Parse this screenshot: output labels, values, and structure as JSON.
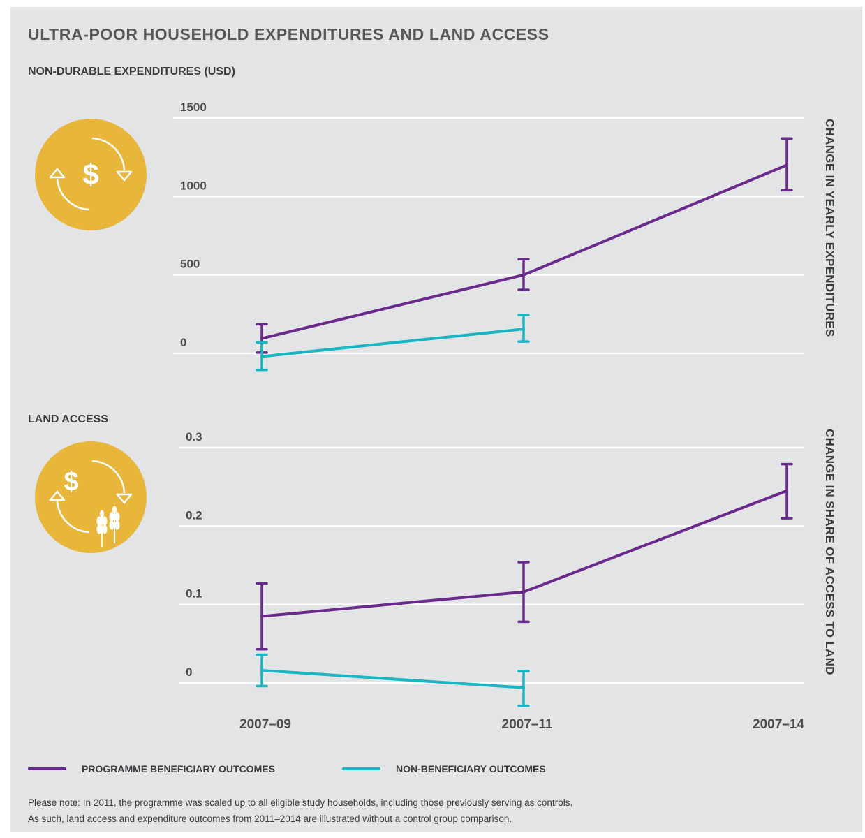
{
  "title": "ULTRA-POOR HOUSEHOLD EXPENDITURES AND LAND ACCESS",
  "colors": {
    "beneficiary": "#6a2a8c",
    "non_beneficiary": "#19b5c3",
    "icon_circle": "#e9b63c",
    "panel": "#e3e4e6"
  },
  "icons": [
    "dollar-cycle-icon",
    "dollar-wheat-cycle-icon"
  ],
  "chart_data": [
    {
      "type": "line",
      "title": "NON-DURABLE EXPENDITURES (USD)",
      "ylabel": "CHANGE IN YEARLY EXPENDITURES",
      "x": [
        "2007–09",
        "2007–11",
        "2007–14"
      ],
      "y_ticks": [
        "1500",
        "1000",
        "500",
        "0"
      ],
      "ylim": [
        0,
        1500
      ],
      "grid": true,
      "series": [
        {
          "name": "PROGRAMME BENEFICIARY OUTCOMES",
          "color": "#6a2a8c",
          "values": [
            95,
            500,
            1200
          ],
          "ci_low": [
            5,
            405,
            1040
          ],
          "ci_high": [
            185,
            600,
            1370
          ]
        },
        {
          "name": "NON-BENEFICIARY OUTCOMES",
          "color": "#19b5c3",
          "values": [
            -20,
            155,
            null
          ],
          "ci_low": [
            -105,
            75,
            null
          ],
          "ci_high": [
            70,
            245,
            null
          ]
        }
      ]
    },
    {
      "type": "line",
      "title": "LAND ACCESS",
      "ylabel": "CHANGE IN SHARE OF ACCESS TO LAND",
      "x": [
        "2007–09",
        "2007–11",
        "2007–14"
      ],
      "y_ticks": [
        "0.3",
        "0.2",
        "0.1",
        "0"
      ],
      "ylim": [
        0,
        0.3
      ],
      "grid": true,
      "series": [
        {
          "name": "PROGRAMME BENEFICIARY OUTCOMES",
          "color": "#6a2a8c",
          "values": [
            0.085,
            0.116,
            0.245
          ],
          "ci_low": [
            0.043,
            0.078,
            0.21
          ],
          "ci_high": [
            0.127,
            0.154,
            0.279
          ]
        },
        {
          "name": "NON-BENEFICIARY OUTCOMES",
          "color": "#19b5c3",
          "values": [
            0.016,
            -0.006,
            null
          ],
          "ci_low": [
            -0.004,
            -0.029,
            null
          ],
          "ci_high": [
            0.036,
            0.015,
            null
          ]
        }
      ]
    }
  ],
  "legend": [
    {
      "label": "PROGRAMME BENEFICIARY OUTCOMES",
      "color": "#6a2a8c"
    },
    {
      "label": "NON-BENEFICIARY OUTCOMES",
      "color": "#19b5c3"
    }
  ],
  "note": {
    "line1": "Please note: In 2011, the programme was scaled up to all eligible study households, including those previously serving as controls.",
    "line2": "As such, land access and expenditure outcomes from 2011–2014 are illustrated without a control group comparison."
  }
}
